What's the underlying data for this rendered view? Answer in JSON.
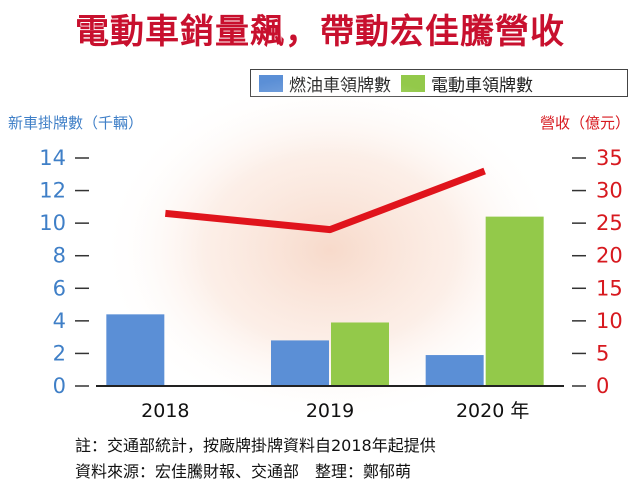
{
  "header": {
    "title": "電動車銷量飆，帶動宏佳騰營收"
  },
  "legend": {
    "items": [
      {
        "label": "燃油車領牌數",
        "color": "#5b8fd6"
      },
      {
        "label": "電動車領牌數",
        "color": "#93c94a"
      }
    ]
  },
  "axes": {
    "left_title": "新車掛牌數（千輛）",
    "right_title": "營收（億元）"
  },
  "chart_data": {
    "type": "bar",
    "categories": [
      "2018",
      "2019",
      "2020 年"
    ],
    "series": [
      {
        "name": "燃油車領牌數",
        "type": "bar",
        "axis": "left",
        "values": [
          4.4,
          2.8,
          1.9
        ],
        "color": "#5b8fd6"
      },
      {
        "name": "電動車領牌數",
        "type": "bar",
        "axis": "left",
        "values": [
          0,
          3.9,
          10.4
        ],
        "color": "#93c94a"
      },
      {
        "name": "營收",
        "type": "line",
        "axis": "right",
        "values": [
          26.5,
          24.0,
          33.0
        ],
        "color": "#e0141c"
      }
    ],
    "y_left": {
      "ticks": [
        0,
        2,
        4,
        6,
        8,
        10,
        12,
        14
      ],
      "ylim": [
        0,
        14
      ],
      "label": "新車掛牌數（千輛）",
      "color": "#3f7fc7"
    },
    "y_right": {
      "ticks": [
        0,
        5,
        10,
        15,
        20,
        25,
        30,
        35
      ],
      "ylim": [
        0,
        35
      ],
      "label": "營收（億元）",
      "color": "#d7191f"
    },
    "grid": false,
    "legend_position": "top-right"
  },
  "footnotes": {
    "note": "註：交通部統計，按廠牌掛牌資料自2018年起提供",
    "source": "資料來源：宏佳騰財報、交通部　整理：鄭郁萌"
  }
}
